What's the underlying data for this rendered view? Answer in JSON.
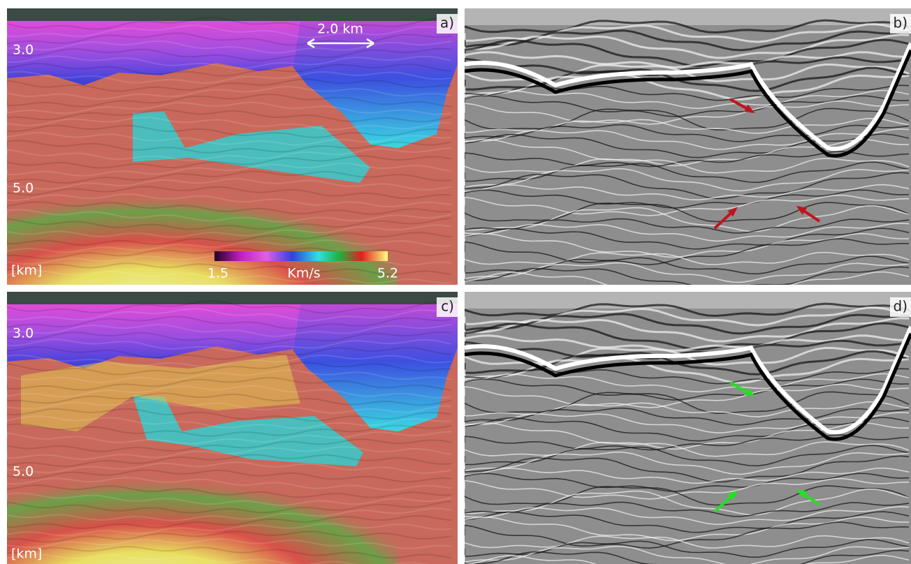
{
  "panels": [
    {
      "label": "a)",
      "depth_top": "3.0",
      "depth_mid": "5.0",
      "unit": "[km]",
      "scale_bar": "2.0 km",
      "colorbar": {
        "min": "1.5",
        "unit": "Km/s",
        "max": "5.2"
      }
    },
    {
      "label": "b)"
    },
    {
      "label": "c)",
      "depth_top": "3.0",
      "depth_mid": "5.0",
      "unit": "[km]"
    },
    {
      "label": "d)"
    }
  ]
}
